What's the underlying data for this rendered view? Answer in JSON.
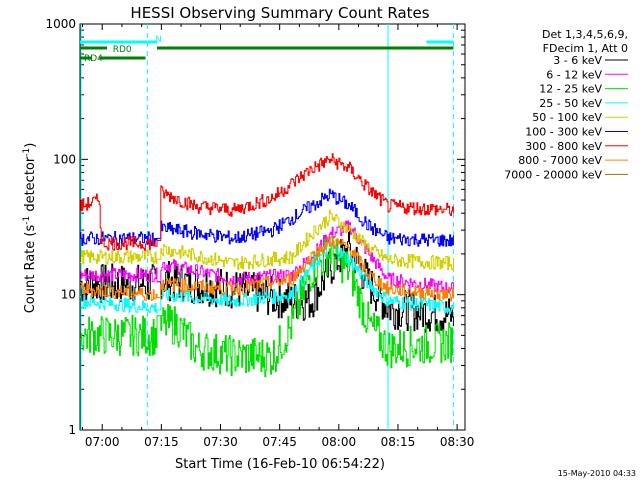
{
  "chart_data": {
    "type": "line",
    "title": "HESSI Observing Summary Count Rates",
    "xlabel": "Start Time (16-Feb-10 06:54:22)",
    "ylabel": "Count Rate (s",
    "ylabel_sup": "-1",
    "ylabel_tail": " detector",
    "ylabel_tail_sup": "-1",
    "ylabel_close": ")",
    "yscale": "log",
    "ylim": [
      1,
      1000
    ],
    "xlim": [
      "06:54:22",
      "08:32:00"
    ],
    "x_ticks": [
      "07:00",
      "07:15",
      "07:30",
      "07:45",
      "08:00",
      "08:15",
      "08:30"
    ],
    "y_ticks": [
      "1",
      "10",
      "100",
      "1000"
    ],
    "legend_header": [
      "Det 1,3,4,5,6,9,",
      "FDecim 1, Att 0"
    ],
    "legend_position": "right",
    "series": [
      {
        "name": "3 - 6 keV",
        "color": "#000000",
        "anchors": [
          [
            0,
            12
          ],
          [
            20,
            12
          ],
          [
            21,
            13
          ],
          [
            40,
            11
          ],
          [
            55,
            9
          ],
          [
            60,
            9
          ],
          [
            65,
            16
          ],
          [
            70,
            22
          ],
          [
            75,
            12
          ],
          [
            80,
            8
          ],
          [
            97,
            7
          ]
        ]
      },
      {
        "name": "6 - 12 keV",
        "color": "#ff00ff",
        "anchors": [
          [
            0,
            14
          ],
          [
            20,
            14
          ],
          [
            21,
            17
          ],
          [
            40,
            13
          ],
          [
            55,
            14
          ],
          [
            60,
            19
          ],
          [
            65,
            28
          ],
          [
            70,
            32
          ],
          [
            75,
            20
          ],
          [
            80,
            13
          ],
          [
            97,
            11
          ]
        ]
      },
      {
        "name": "12 - 25 keV",
        "color": "#00e000",
        "anchors": [
          [
            0,
            5
          ],
          [
            20,
            5
          ],
          [
            21,
            6
          ],
          [
            25,
            6
          ],
          [
            30,
            4
          ],
          [
            40,
            3.5
          ],
          [
            50,
            3.5
          ],
          [
            55,
            6
          ],
          [
            60,
            15
          ],
          [
            65,
            21
          ],
          [
            70,
            15
          ],
          [
            75,
            6
          ],
          [
            80,
            4
          ],
          [
            97,
            4.5
          ]
        ]
      },
      {
        "name": "25 - 50 keV",
        "color": "#00ffff",
        "anchors": [
          [
            0,
            9
          ],
          [
            20,
            8
          ],
          [
            21,
            10
          ],
          [
            40,
            9
          ],
          [
            55,
            10
          ],
          [
            60,
            16
          ],
          [
            65,
            23
          ],
          [
            70,
            18
          ],
          [
            75,
            12
          ],
          [
            80,
            9
          ],
          [
            97,
            8
          ]
        ]
      },
      {
        "name": "50 - 100 keV",
        "color": "#d0d000",
        "anchors": [
          [
            0,
            19
          ],
          [
            20,
            19
          ],
          [
            21,
            22
          ],
          [
            40,
            17
          ],
          [
            55,
            19
          ],
          [
            60,
            28
          ],
          [
            65,
            38
          ],
          [
            70,
            30
          ],
          [
            75,
            22
          ],
          [
            80,
            18
          ],
          [
            97,
            17
          ]
        ]
      },
      {
        "name": "100 - 300 keV",
        "color": "#0000ff",
        "anchors": [
          [
            0,
            26
          ],
          [
            20,
            26
          ],
          [
            21,
            31
          ],
          [
            40,
            26
          ],
          [
            50,
            30
          ],
          [
            60,
            45
          ],
          [
            65,
            55
          ],
          [
            70,
            45
          ],
          [
            75,
            32
          ],
          [
            80,
            26
          ],
          [
            97,
            25
          ]
        ]
      },
      {
        "name": "300 - 800 keV",
        "color": "#ff0000",
        "anchors": [
          [
            0,
            45
          ],
          [
            5,
            50
          ],
          [
            5.5,
            24
          ],
          [
            20,
            24
          ],
          [
            21,
            57
          ],
          [
            30,
            45
          ],
          [
            40,
            42
          ],
          [
            50,
            52
          ],
          [
            60,
            85
          ],
          [
            65,
            100
          ],
          [
            70,
            85
          ],
          [
            75,
            60
          ],
          [
            80,
            45
          ],
          [
            97,
            42
          ]
        ]
      },
      {
        "name": "800 - 7000 keV",
        "color": "#ff8000",
        "anchors": [
          [
            0,
            11
          ],
          [
            20,
            10
          ],
          [
            21,
            12
          ],
          [
            40,
            11
          ],
          [
            55,
            13
          ],
          [
            60,
            19
          ],
          [
            65,
            25
          ],
          [
            70,
            22
          ],
          [
            75,
            14
          ],
          [
            80,
            11
          ],
          [
            97,
            10
          ]
        ]
      },
      {
        "name": "7000 - 20000 keV",
        "color": "#808000",
        "anchors": [
          [
            0,
            1
          ],
          [
            97,
            1
          ]
        ]
      }
    ],
    "flags": [
      {
        "label": "N",
        "color": "#00ffff",
        "segments": [
          [
            0,
            20
          ],
          [
            90,
            97
          ]
        ]
      },
      {
        "label": "RD0",
        "color": "#008000",
        "segments": [
          [
            0,
            7
          ],
          [
            20,
            97
          ]
        ]
      },
      {
        "label": "RD4",
        "color": "#008000",
        "segments": [
          [
            0,
            3
          ],
          [
            5,
            17
          ]
        ]
      }
    ],
    "vlines_solid": [
      0,
      80
    ],
    "vlines_dashed": [
      17.5,
      97
    ]
  },
  "footer": {
    "date": "15-May-2010 04:33"
  }
}
